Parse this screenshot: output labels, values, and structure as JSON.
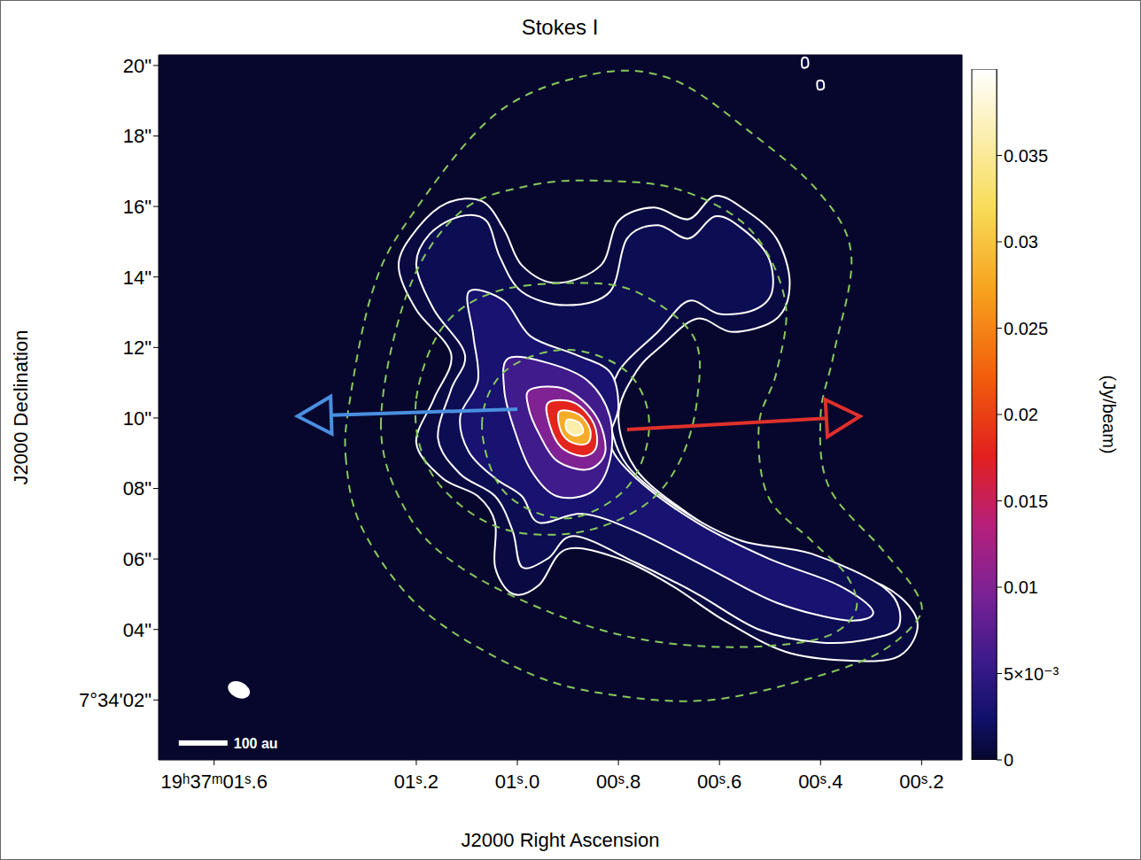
{
  "chart_data": {
    "type": "contour",
    "title": "Stokes I",
    "x_label": "J2000 Right Ascension",
    "y_label": "J2000 Declination",
    "xlim": [
      1.71,
      0.12
    ],
    "ylim": [
      0.3,
      20.3
    ],
    "xticks": [
      {
        "value": 1.6,
        "label": "19ʰ37ᵐ01ˢ.6"
      },
      {
        "value": 1.2,
        "label": "01ˢ.2"
      },
      {
        "value": 1.0,
        "label": "01ˢ.0"
      },
      {
        "value": 0.8,
        "label": "00ˢ.8"
      },
      {
        "value": 0.6,
        "label": "00ˢ.6"
      },
      {
        "value": 0.4,
        "label": "00ˢ.4"
      },
      {
        "value": 0.2,
        "label": "00ˢ.2"
      }
    ],
    "yticks": [
      {
        "value": 2,
        "label": "7°34'02\""
      },
      {
        "value": 4,
        "label": "04\""
      },
      {
        "value": 6,
        "label": "06\""
      },
      {
        "value": 8,
        "label": "08\""
      },
      {
        "value": 10,
        "label": "10\""
      },
      {
        "value": 12,
        "label": "12\""
      },
      {
        "value": 14,
        "label": "14\""
      },
      {
        "value": 16,
        "label": "16\""
      },
      {
        "value": 18,
        "label": "18\""
      },
      {
        "value": 20,
        "label": "20\""
      }
    ],
    "grid": false,
    "colorbar": {
      "label": "(Jy/beam)",
      "range": [
        0,
        0.04
      ],
      "ticks": [
        0,
        {
          "value": 0.005,
          "label": "5×10⁻³"
        },
        0.01,
        0.015,
        0.02,
        0.025,
        0.03,
        0.035
      ]
    },
    "contours": {
      "color": "#ffffff",
      "line_style": "solid",
      "levels": [
        {
          "level": 0.0008,
          "paths": [
            [
              [
                1.139,
                16.1
              ],
              [
                1.07,
                16.15
              ],
              [
                1.026,
                15.34
              ],
              [
                0.991,
                14.33
              ],
              [
                0.922,
                13.83
              ],
              [
                0.835,
                14.33
              ],
              [
                0.8,
                15.59
              ],
              [
                0.73,
                15.97
              ],
              [
                0.661,
                15.64
              ],
              [
                0.609,
                16.3
              ],
              [
                0.548,
                15.89
              ],
              [
                0.487,
                15.09
              ],
              [
                0.461,
                13.83
              ],
              [
                0.487,
                12.82
              ],
              [
                0.574,
                12.44
              ],
              [
                0.644,
                12.82
              ],
              [
                0.713,
                12.07
              ],
              [
                0.765,
                11.31
              ],
              [
                0.8,
                10.05
              ],
              [
                0.765,
                8.54
              ],
              [
                0.661,
                7.28
              ],
              [
                0.539,
                6.27
              ],
              [
                0.418,
                5.77
              ],
              [
                0.278,
                5.26
              ],
              [
                0.209,
                4.26
              ],
              [
                0.244,
                3.25
              ],
              [
                0.348,
                3.12
              ],
              [
                0.47,
                3.37
              ],
              [
                0.591,
                4.26
              ],
              [
                0.696,
                5.26
              ],
              [
                0.8,
                6.02
              ],
              [
                0.904,
                6.27
              ],
              [
                0.957,
                5.26
              ],
              [
                1.009,
                5.01
              ],
              [
                1.044,
                5.77
              ],
              [
                1.044,
                7.03
              ],
              [
                1.078,
                7.78
              ],
              [
                1.148,
                8.29
              ],
              [
                1.2,
                9.29
              ],
              [
                1.165,
                10.55
              ],
              [
                1.131,
                11.81
              ],
              [
                1.2,
                13.07
              ],
              [
                1.235,
                14.33
              ],
              [
                1.2,
                15.34
              ]
            ],
            [
              [
                0.825,
                6.85
              ],
              [
                0.812,
                6.72
              ],
              [
                0.815,
                6.56
              ],
              [
                0.828,
                6.5
              ],
              [
                0.838,
                6.62
              ],
              [
                0.836,
                6.78
              ]
            ],
            [
              [
                0.436,
                20.2
              ],
              [
                0.426,
                20.2
              ],
              [
                0.425,
                19.98
              ],
              [
                0.436,
                19.95
              ]
            ],
            [
              [
                0.406,
                19.55
              ],
              [
                0.395,
                19.55
              ],
              [
                0.394,
                19.35
              ],
              [
                0.405,
                19.33
              ]
            ]
          ]
        },
        {
          "level": 0.0015,
          "paths": [
            [
              [
                1.113,
                15.72
              ],
              [
                1.061,
                15.59
              ],
              [
                1.035,
                14.58
              ],
              [
                0.991,
                13.58
              ],
              [
                0.904,
                13.2
              ],
              [
                0.817,
                13.58
              ],
              [
                0.783,
                15.09
              ],
              [
                0.722,
                15.47
              ],
              [
                0.661,
                15.09
              ],
              [
                0.609,
                15.72
              ],
              [
                0.557,
                15.39
              ],
              [
                0.504,
                14.58
              ],
              [
                0.496,
                13.58
              ],
              [
                0.531,
                13.07
              ],
              [
                0.6,
                12.95
              ],
              [
                0.661,
                13.32
              ],
              [
                0.722,
                12.44
              ],
              [
                0.8,
                11.31
              ],
              [
                0.817,
                10.05
              ],
              [
                0.783,
                8.66
              ],
              [
                0.678,
                7.41
              ],
              [
                0.557,
                6.52
              ],
              [
                0.418,
                6.15
              ],
              [
                0.27,
                5.14
              ],
              [
                0.244,
                4.13
              ],
              [
                0.296,
                3.75
              ],
              [
                0.4,
                3.63
              ],
              [
                0.522,
                4.0
              ],
              [
                0.644,
                5.01
              ],
              [
                0.765,
                5.89
              ],
              [
                0.887,
                6.65
              ],
              [
                0.939,
                6.02
              ],
              [
                0.991,
                5.77
              ],
              [
                1.009,
                6.78
              ],
              [
                1.044,
                7.78
              ],
              [
                1.113,
                8.41
              ],
              [
                1.157,
                9.42
              ],
              [
                1.131,
                10.81
              ],
              [
                1.104,
                11.81
              ],
              [
                1.165,
                13.07
              ],
              [
                1.2,
                14.33
              ],
              [
                1.174,
                15.21
              ]
            ]
          ]
        },
        {
          "level": 0.003,
          "paths": [
            [
              [
                1.096,
                13.58
              ],
              [
                1.026,
                13.32
              ],
              [
                0.974,
                12.32
              ],
              [
                0.887,
                11.81
              ],
              [
                0.817,
                11.31
              ],
              [
                0.8,
                10.3
              ],
              [
                0.817,
                9.29
              ],
              [
                0.765,
                8.29
              ],
              [
                0.644,
                7.03
              ],
              [
                0.504,
                6.02
              ],
              [
                0.365,
                5.26
              ],
              [
                0.296,
                4.51
              ],
              [
                0.348,
                4.26
              ],
              [
                0.487,
                4.76
              ],
              [
                0.626,
                5.77
              ],
              [
                0.765,
                6.78
              ],
              [
                0.87,
                7.28
              ],
              [
                0.957,
                7.03
              ],
              [
                0.991,
                7.78
              ],
              [
                1.044,
                8.29
              ],
              [
                1.096,
                9.04
              ],
              [
                1.113,
                10.05
              ],
              [
                1.078,
                11.06
              ],
              [
                1.087,
                12.32
              ]
            ]
          ]
        },
        {
          "level": 0.006,
          "paths": [
            [
              [
                1.018,
                11.69
              ],
              [
                0.939,
                11.56
              ],
              [
                0.861,
                11.06
              ],
              [
                0.817,
                10.05
              ],
              [
                0.817,
                8.79
              ],
              [
                0.852,
                7.91
              ],
              [
                0.922,
                7.78
              ],
              [
                0.974,
                8.54
              ],
              [
                1.009,
                9.8
              ],
              [
                1.026,
                10.81
              ]
            ]
          ]
        },
        {
          "level": 0.01,
          "paths": [
            [
              [
                0.974,
                10.81
              ],
              [
                0.904,
                10.81
              ],
              [
                0.844,
                10.05
              ],
              [
                0.826,
                9.04
              ],
              [
                0.861,
                8.54
              ],
              [
                0.922,
                8.79
              ],
              [
                0.957,
                9.55
              ],
              [
                0.978,
                10.3
              ]
            ]
          ]
        },
        {
          "level": 0.018,
          "paths": [
            [
              [
                0.939,
                10.43
              ],
              [
                0.887,
                10.43
              ],
              [
                0.849,
                9.85
              ],
              [
                0.844,
                9.17
              ],
              [
                0.87,
                8.92
              ],
              [
                0.913,
                9.17
              ],
              [
                0.936,
                9.8
              ]
            ]
          ]
        },
        {
          "level": 0.028,
          "paths": [
            [
              [
                0.917,
                10.18
              ],
              [
                0.878,
                10.1
              ],
              [
                0.856,
                9.67
              ],
              [
                0.861,
                9.29
              ],
              [
                0.89,
                9.29
              ],
              [
                0.913,
                9.6
              ]
            ]
          ]
        },
        {
          "level": 0.036,
          "paths": [
            [
              [
                0.901,
                9.95
              ],
              [
                0.878,
                9.87
              ],
              [
                0.87,
                9.6
              ],
              [
                0.887,
                9.5
              ],
              [
                0.903,
                9.67
              ]
            ]
          ]
        }
      ]
    },
    "envelope": {
      "color": "#86c95a",
      "line_style": "dashed",
      "paths": [
        [
          [
            1.339,
            8.79
          ],
          [
            1.331,
            10.55
          ],
          [
            1.287,
            13.58
          ],
          [
            1.217,
            15.59
          ],
          [
            1.044,
            18.61
          ],
          [
            0.852,
            19.75
          ],
          [
            0.696,
            19.62
          ],
          [
            0.539,
            18.11
          ],
          [
            0.4,
            16.35
          ],
          [
            0.339,
            14.58
          ],
          [
            0.374,
            11.81
          ],
          [
            0.4,
            10.05
          ],
          [
            0.383,
            8.03
          ],
          [
            0.278,
            6.27
          ],
          [
            0.209,
            5.01
          ],
          [
            0.209,
            4.26
          ],
          [
            0.296,
            3.25
          ],
          [
            0.452,
            2.49
          ],
          [
            0.626,
            1.99
          ],
          [
            0.8,
            2.12
          ],
          [
            0.974,
            2.74
          ],
          [
            1.183,
            4.51
          ],
          [
            1.304,
            6.78
          ]
        ],
        [
          [
            1.27,
            9.8
          ],
          [
            1.217,
            13.58
          ],
          [
            1.113,
            15.84
          ],
          [
            0.974,
            16.6
          ],
          [
            0.835,
            16.73
          ],
          [
            0.678,
            16.47
          ],
          [
            0.539,
            15.34
          ],
          [
            0.47,
            13.32
          ],
          [
            0.487,
            11.31
          ],
          [
            0.522,
            9.8
          ],
          [
            0.504,
            7.78
          ],
          [
            0.418,
            6.52
          ],
          [
            0.348,
            5.52
          ],
          [
            0.331,
            4.51
          ],
          [
            0.4,
            3.75
          ],
          [
            0.574,
            3.5
          ],
          [
            0.765,
            3.75
          ],
          [
            0.939,
            4.51
          ],
          [
            1.113,
            5.77
          ],
          [
            1.217,
            7.28
          ]
        ],
        [
          [
            1.2,
            10.55
          ],
          [
            1.148,
            12.57
          ],
          [
            1.044,
            13.58
          ],
          [
            0.887,
            13.83
          ],
          [
            0.765,
            13.58
          ],
          [
            0.652,
            12.32
          ],
          [
            0.644,
            10.55
          ],
          [
            0.678,
            8.79
          ],
          [
            0.748,
            7.53
          ],
          [
            0.87,
            6.78
          ],
          [
            1.009,
            6.78
          ],
          [
            1.113,
            7.53
          ],
          [
            1.183,
            8.79
          ]
        ],
        [
          [
            1.07,
            9.8
          ],
          [
            1.026,
            11.31
          ],
          [
            0.904,
            11.94
          ],
          [
            0.783,
            11.31
          ],
          [
            0.739,
            9.8
          ],
          [
            0.783,
            8.03
          ],
          [
            0.904,
            7.15
          ],
          [
            1.026,
            7.91
          ]
        ]
      ]
    },
    "arrows": [
      {
        "color": "#4a8fe0",
        "from": [
          1.0,
          10.25
        ],
        "to": [
          1.435,
          10.05
        ]
      },
      {
        "color": "#e0302a",
        "from": [
          0.783,
          9.67
        ],
        "to": [
          0.322,
          10.05
        ]
      }
    ],
    "beam": [
      1.551,
      2.29
    ],
    "scale_bar": {
      "label": "100 au",
      "position": [
        1.67,
        0.78
      ]
    }
  }
}
